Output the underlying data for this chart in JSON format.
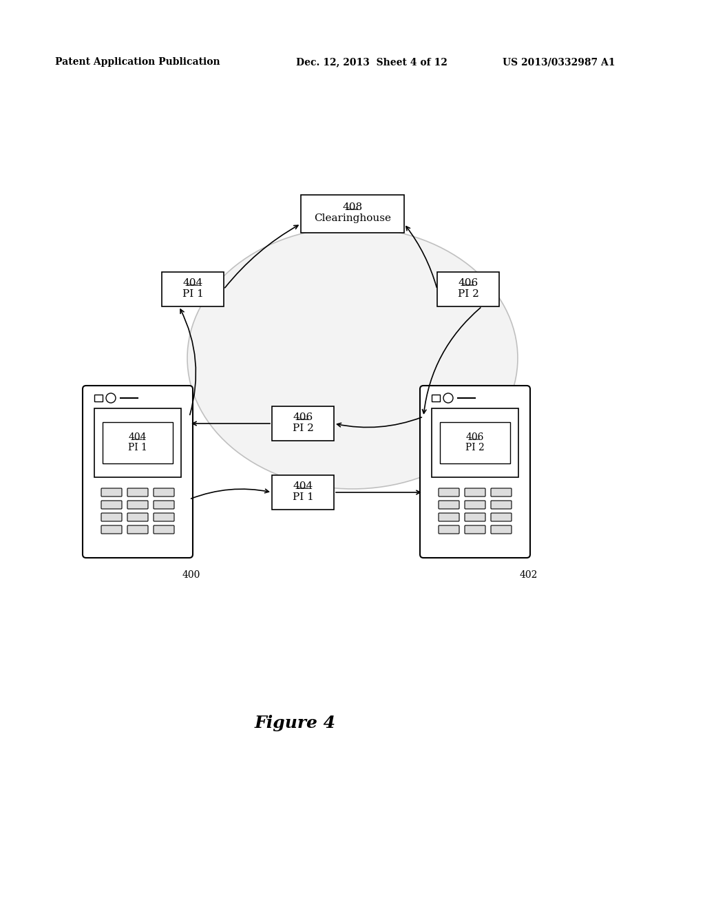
{
  "bg_color": "#ffffff",
  "header_left": "Patent Application Publication",
  "header_mid": "Dec. 12, 2013  Sheet 4 of 12",
  "header_right": "US 2013/0332987 A1",
  "figure_label": "Figure 4",
  "clearinghouse_label": "Clearinghouse",
  "clearinghouse_num": "408",
  "pi1_label": "PI 1",
  "pi1_num": "404",
  "pi2_label": "PI 2",
  "pi2_num": "406",
  "phone_left_num": "400",
  "phone_right_num": "402",
  "mid_pi2_label": "PI 2",
  "mid_pi2_num": "406",
  "mid_pi1_label": "PI 1",
  "mid_pi1_num": "404"
}
